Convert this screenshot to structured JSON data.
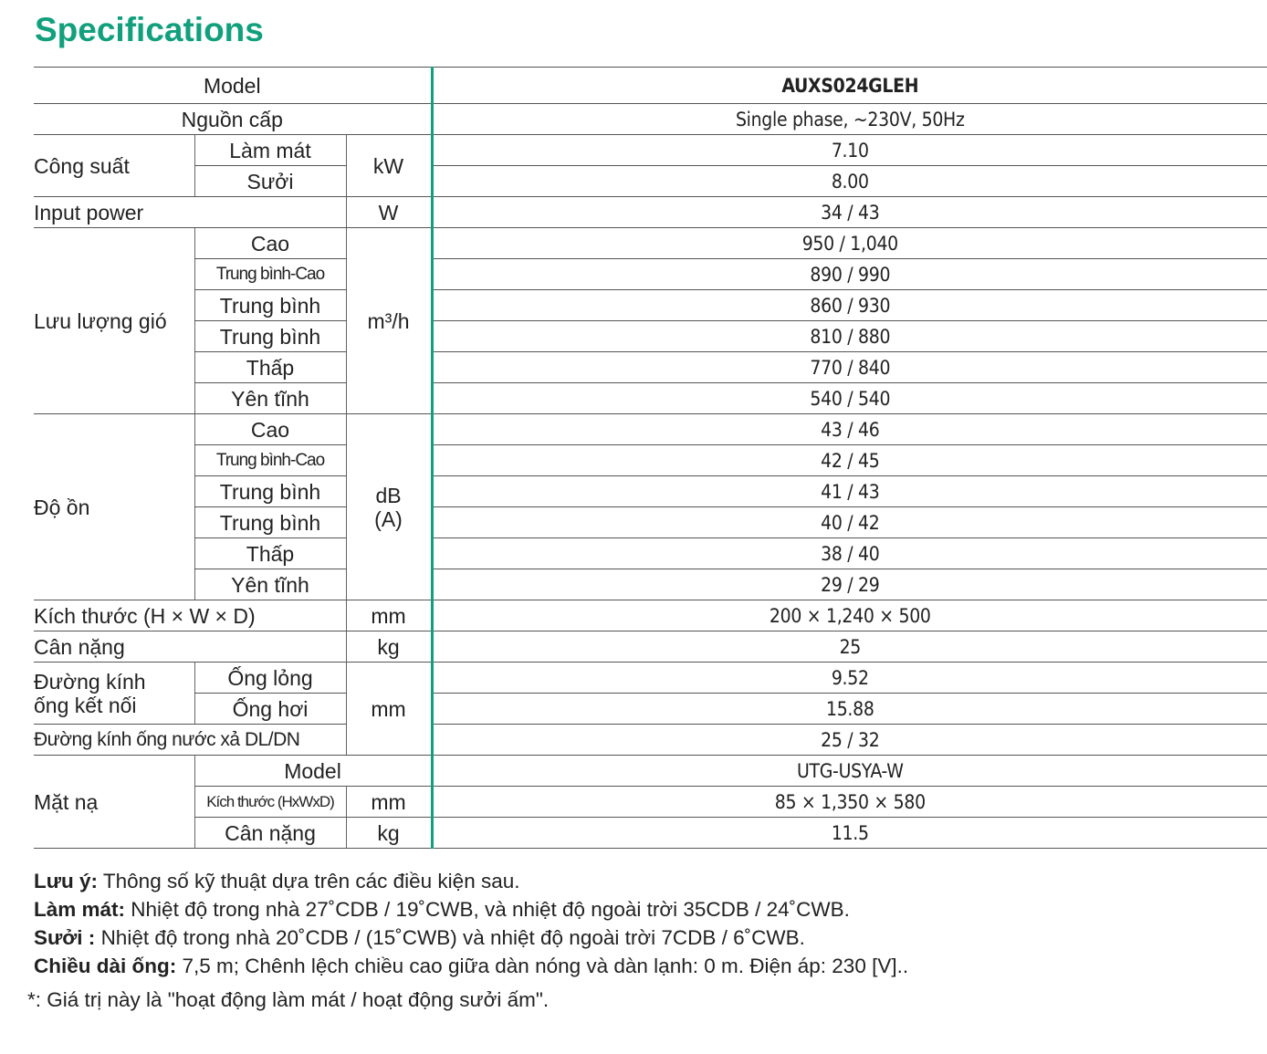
{
  "header": {
    "title": "Specifications"
  },
  "table": {
    "rows": [
      [
        "Model",
        "AUXS024GLEH"
      ],
      [
        "Nguồn cấp",
        "Single phase, ~230V, 50Hz"
      ],
      [
        "Công suất",
        "Làm mát",
        "kW",
        "7.10"
      ],
      [
        "Sưởi",
        "8.00"
      ],
      [
        "Input power",
        "W",
        "34 / 43"
      ],
      [
        "Lưu lượng gió",
        "Cao",
        "m³/h",
        "950 / 1,040"
      ],
      [
        "Trung bình-Cao",
        "890 / 990"
      ],
      [
        "Trung bình",
        "860 / 930"
      ],
      [
        "Trung bình",
        "810 / 880"
      ],
      [
        "Thấp",
        "770 / 840"
      ],
      [
        "Yên tĩnh",
        "540 / 540"
      ],
      [
        "Độ ồn",
        "Cao",
        "dB\n(A)",
        "43 / 46"
      ],
      [
        "Trung bình-Cao",
        "42 / 45"
      ],
      [
        "Trung bình",
        "41 / 43"
      ],
      [
        "Trung bình",
        "40 / 42"
      ],
      [
        "Thấp",
        "38 / 40"
      ],
      [
        "Yên tĩnh",
        "29 / 29"
      ],
      [
        "Kích thước (H × W × D)",
        "mm",
        "200 × 1,240 × 500"
      ],
      [
        "Cân nặng",
        "kg",
        "25"
      ],
      [
        "Đường kính\nống kết nối",
        "Ống lỏng",
        "mm",
        "9.52"
      ],
      [
        "Ống hơi",
        "15.88"
      ],
      [
        "Đường kính ống nước xả DL/DN",
        "25 / 32"
      ],
      [
        "Mặt nạ",
        "Model",
        "UTG-USYA-W"
      ],
      [
        "Kích thước (HxWxD)",
        "mm",
        "85 × 1,350 × 580"
      ],
      [
        "Cân nặng",
        "kg",
        "11.5"
      ]
    ]
  },
  "notes": [
    {
      "label": "Lưu ý:",
      "text": "Thông số kỹ thuật dựa trên các điều kiện sau."
    },
    {
      "label": "Làm mát:",
      "text": "Nhiệt độ trong nhà 27˚CDB / 19˚CWB, và nhiệt độ ngoài trời 35CDB / 24˚CWB."
    },
    {
      "label": "Sưởi :",
      "text": "Nhiệt độ trong nhà 20˚CDB / (15˚CWB) và nhiệt độ ngoài trời 7CDB / 6˚CWB."
    },
    {
      "label": "Chiều dài ống:",
      "text": "7,5 m; Chênh lệch chiều cao giữa dàn nóng và dàn lạnh: 0 m. Điện áp: 230 [V].."
    }
  ],
  "footnote": "*: Giá trị này là \"hoạt động làm mát / hoạt động sưởi ấm\"."
}
